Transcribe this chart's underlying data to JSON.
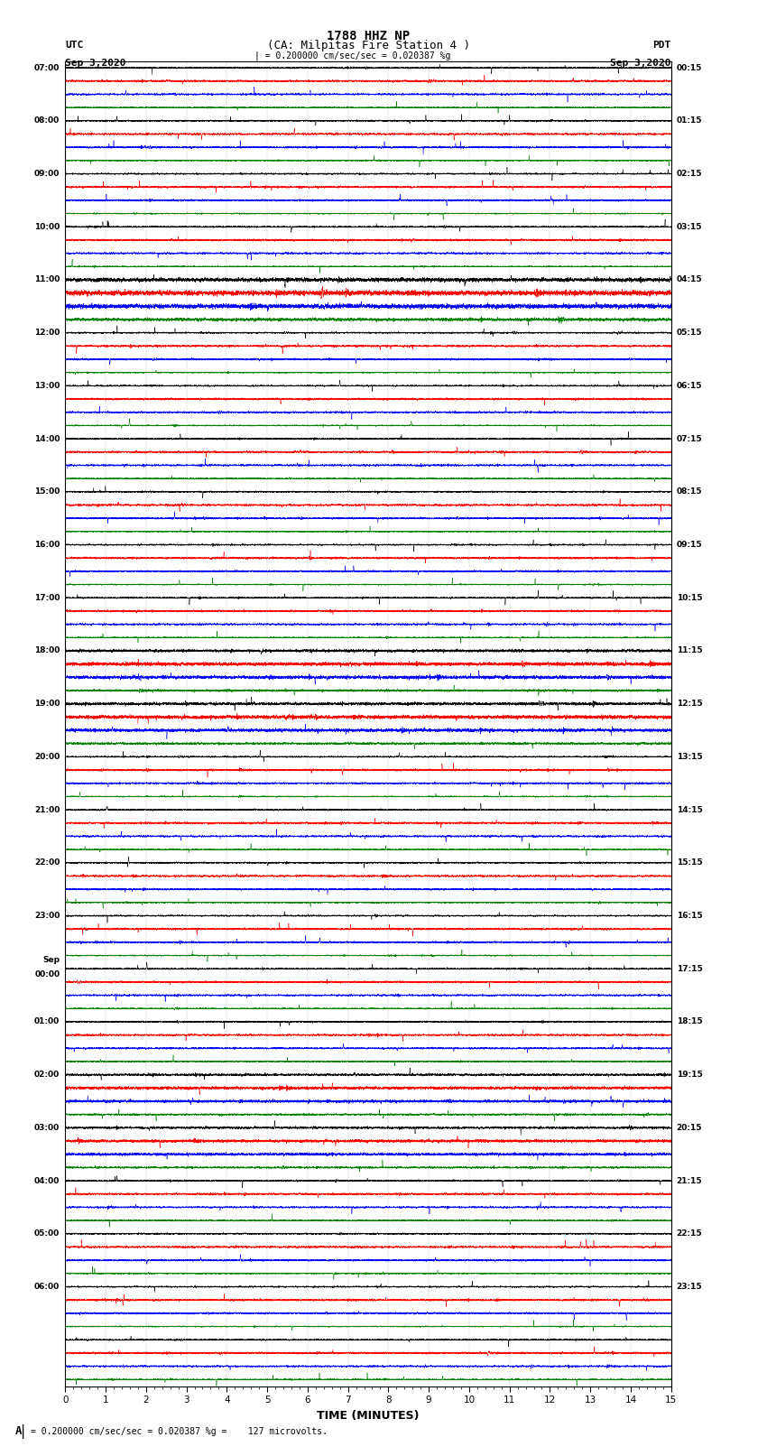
{
  "title_line1": "1788 HHZ NP",
  "title_line2": "(CA: Milpitas Fire Station 4 )",
  "scale_text": "= 0.200000 cm/sec/sec = 0.020387 %g",
  "footer_text": "= 0.200000 cm/sec/sec = 0.020387 %g =    127 microvolts.",
  "utc_label": "UTC",
  "pdt_label": "PDT",
  "date_left": "Sep 3,2020",
  "date_right": "Sep 3,2020",
  "xlabel": "TIME (MINUTES)",
  "xmin": 0,
  "xmax": 15,
  "xticks": [
    0,
    1,
    2,
    3,
    4,
    5,
    6,
    7,
    8,
    9,
    10,
    11,
    12,
    13,
    14,
    15
  ],
  "colors": [
    "black",
    "red",
    "blue",
    "green"
  ],
  "n_rows": 100,
  "background": "white",
  "trace_lw": 0.35,
  "fig_width": 8.5,
  "fig_height": 16.13,
  "left_times_utc": [
    "07:00",
    "",
    "",
    "",
    "08:00",
    "",
    "",
    "",
    "09:00",
    "",
    "",
    "",
    "10:00",
    "",
    "",
    "",
    "11:00",
    "",
    "",
    "",
    "12:00",
    "",
    "",
    "",
    "13:00",
    "",
    "",
    "",
    "14:00",
    "",
    "",
    "",
    "15:00",
    "",
    "",
    "",
    "16:00",
    "",
    "",
    "",
    "17:00",
    "",
    "",
    "",
    "18:00",
    "",
    "",
    "",
    "19:00",
    "",
    "",
    "",
    "20:00",
    "",
    "",
    "",
    "21:00",
    "",
    "",
    "",
    "22:00",
    "",
    "",
    "",
    "23:00",
    "",
    "",
    "",
    "Sep\n00:00",
    "",
    "",
    "",
    "01:00",
    "",
    "",
    "",
    "02:00",
    "",
    "",
    "",
    "03:00",
    "",
    "",
    "",
    "04:00",
    "",
    "",
    "",
    "05:00",
    "",
    "",
    "",
    "06:00",
    "",
    ""
  ],
  "right_times_pdt": [
    "00:15",
    "",
    "",
    "",
    "01:15",
    "",
    "",
    "",
    "02:15",
    "",
    "",
    "",
    "03:15",
    "",
    "",
    "",
    "04:15",
    "",
    "",
    "",
    "05:15",
    "",
    "",
    "",
    "06:15",
    "",
    "",
    "",
    "07:15",
    "",
    "",
    "",
    "08:15",
    "",
    "",
    "",
    "09:15",
    "",
    "",
    "",
    "10:15",
    "",
    "",
    "",
    "11:15",
    "",
    "",
    "",
    "12:15",
    "",
    "",
    "",
    "13:15",
    "",
    "",
    "",
    "14:15",
    "",
    "",
    "",
    "15:15",
    "",
    "",
    "",
    "16:15",
    "",
    "",
    "",
    "17:15",
    "",
    "",
    "",
    "18:15",
    "",
    "",
    "",
    "19:15",
    "",
    "",
    "",
    "20:15",
    "",
    "",
    "",
    "21:15",
    "",
    "",
    "",
    "22:15",
    "",
    "",
    "",
    "23:15",
    "",
    ""
  ]
}
